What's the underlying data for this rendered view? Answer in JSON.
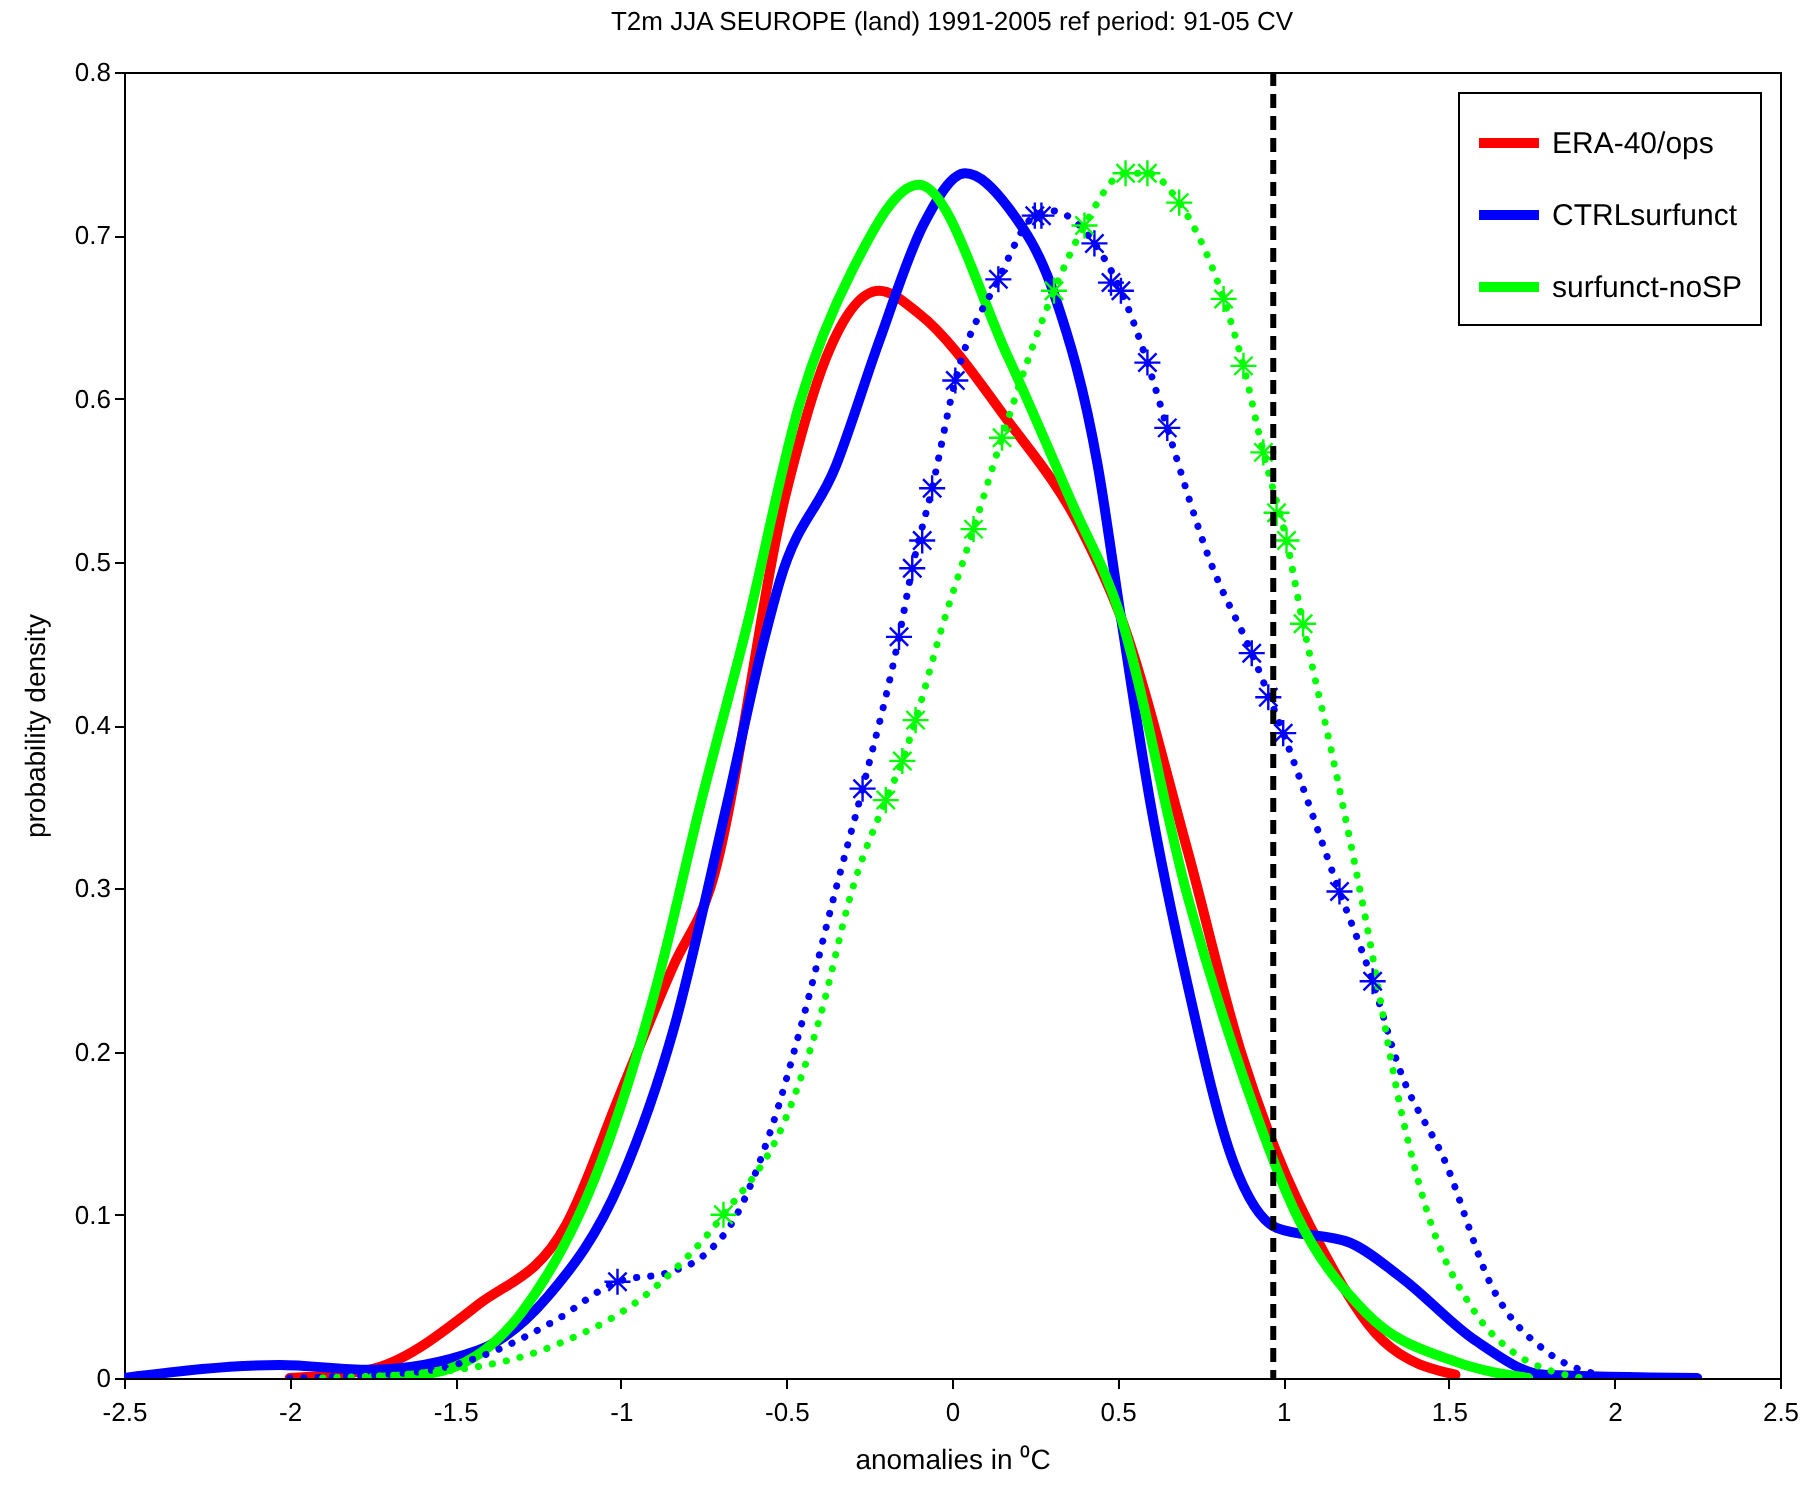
{
  "chart_data": {
    "type": "line",
    "title": "T2m   JJA   SEUROPE (land)  1991-2005  ref period: 91-05  CV",
    "xlabel": "anomalies in ⁰C",
    "ylabel": "probability density",
    "xlim": [
      -2.5,
      2.5
    ],
    "xticks": [
      -2.5,
      -2,
      -1.5,
      -1,
      -0.5,
      0,
      0.5,
      1,
      1.5,
      2,
      2.5
    ],
    "ylim": [
      0,
      0.8
    ],
    "yticks": [
      0,
      0.1,
      0.2,
      0.3,
      0.4,
      0.5,
      0.6,
      0.7,
      0.8
    ],
    "legend": "top right",
    "ref_lines": [
      {
        "axis": "x",
        "value": 0.97,
        "color": "#000000",
        "line_style": "dashed"
      }
    ],
    "series": [
      {
        "name": "ERA-40/ops",
        "color": "#ff0000",
        "x": [
          -2.0,
          -1.76,
          -1.43,
          -1.165,
          -1.0,
          -0.84,
          -0.73,
          -0.5,
          -0.38,
          -0.22,
          -0.1,
          0.17,
          0.39,
          0.51,
          0.71,
          0.875,
          0.98,
          1.12,
          1.3,
          1.52
        ],
        "values": [
          0,
          0.005,
          0.045,
          0.094,
          0.175,
          0.253,
          0.3,
          0.543,
          0.625,
          0.666,
          0.652,
          0.586,
          0.52,
          0.466,
          0.324,
          0.198,
          0.138,
          0.078,
          0.023,
          0.002
        ]
      },
      {
        "name": "CTRLsurfunct",
        "color": "#0000ff",
        "x": [
          -2.5,
          -2.03,
          -1.76,
          -1.43,
          -1.22,
          -1.0,
          -0.84,
          -0.68,
          -0.57,
          -0.52,
          -0.35,
          -0.22,
          -0.085,
          0.04,
          0.17,
          0.31,
          0.44,
          0.51,
          0.6,
          0.71,
          0.85,
          0.98,
          1.2,
          1.36,
          1.58,
          1.79,
          2.25
        ],
        "values": [
          0,
          0.008,
          0.005,
          0.017,
          0.05,
          0.121,
          0.214,
          0.351,
          0.45,
          0.488,
          0.559,
          0.635,
          0.707,
          0.738,
          0.717,
          0.663,
          0.559,
          0.466,
          0.351,
          0.242,
          0.132,
          0.092,
          0.083,
          0.061,
          0.023,
          0.002,
          0
        ]
      },
      {
        "name": "surfunct-noSP",
        "color": "#00ff00",
        "x": [
          -1.75,
          -1.57,
          -1.3,
          -1.06,
          -0.89,
          -0.76,
          -0.62,
          -0.46,
          -0.3,
          -0.1,
          0.17,
          0.36,
          0.51,
          0.71,
          0.875,
          1.04,
          1.25,
          1.52,
          1.74
        ],
        "values": [
          0,
          0.003,
          0.04,
          0.132,
          0.242,
          0.351,
          0.46,
          0.597,
          0.679,
          0.731,
          0.625,
          0.537,
          0.466,
          0.296,
          0.187,
          0.1,
          0.04,
          0.01,
          0
        ]
      },
      {
        "color": "#0000ff",
        "line_style": "dotted",
        "x": [
          -2.0,
          -1.6,
          -1.4,
          -1.2,
          -1.01,
          -0.85,
          -0.75,
          -0.65,
          -0.55,
          -0.45,
          -0.35,
          -0.27,
          -0.16,
          -0.12,
          -0.06,
          0.01,
          0.14,
          0.25,
          0.3,
          0.43,
          0.51,
          0.59,
          0.65,
          0.78,
          0.905,
          1.0,
          1.17,
          1.27,
          1.35,
          1.49,
          1.63,
          1.79,
          2.0
        ],
        "values": [
          0,
          0.004,
          0.015,
          0.035,
          0.059,
          0.065,
          0.075,
          0.1,
          0.15,
          0.22,
          0.3,
          0.361,
          0.454,
          0.496,
          0.545,
          0.611,
          0.673,
          0.712,
          0.715,
          0.695,
          0.666,
          0.622,
          0.582,
          0.5,
          0.444,
          0.395,
          0.298,
          0.243,
          0.19,
          0.132,
          0.056,
          0.017,
          0
        ]
      },
      {
        "color": "#00ff00",
        "line_style": "dotted",
        "x": [
          -1.9,
          -1.5,
          -1.2,
          -0.9,
          -0.69,
          -0.5,
          -0.4,
          -0.3,
          -0.2,
          -0.15,
          -0.11,
          -0.03,
          0.065,
          0.151,
          0.308,
          0.4,
          0.524,
          0.59,
          0.686,
          0.82,
          0.88,
          0.94,
          1.01,
          1.06,
          1.15,
          1.25,
          1.36,
          1.43,
          1.58,
          1.7,
          1.8,
          1.9
        ],
        "values": [
          0,
          0.005,
          0.02,
          0.055,
          0.1,
          0.16,
          0.22,
          0.3,
          0.354,
          0.378,
          0.403,
          0.46,
          0.52,
          0.576,
          0.666,
          0.706,
          0.738,
          0.738,
          0.72,
          0.661,
          0.62,
          0.567,
          0.513,
          0.462,
          0.38,
          0.28,
          0.16,
          0.105,
          0.04,
          0.015,
          0.005,
          0
        ]
      },
      {
        "type": "scatter",
        "marker": "cross",
        "color": "#0000ff",
        "x": [
          -1.01,
          -0.27,
          -0.16,
          -0.12,
          -0.09,
          -0.06,
          0.01,
          0.14,
          0.25,
          0.27,
          0.43,
          0.48,
          0.51,
          0.59,
          0.65,
          0.905,
          0.955,
          1.0,
          1.17,
          1.27
        ],
        "values": [
          0.059,
          0.361,
          0.454,
          0.496,
          0.513,
          0.545,
          0.611,
          0.673,
          0.712,
          0.712,
          0.695,
          0.671,
          0.666,
          0.622,
          0.582,
          0.444,
          0.417,
          0.395,
          0.298,
          0.243
        ]
      },
      {
        "type": "scatter",
        "marker": "cross",
        "color": "#00ff00",
        "x": [
          -0.69,
          -0.2,
          -0.15,
          -0.11,
          0.065,
          0.151,
          0.308,
          0.4,
          0.524,
          0.59,
          0.686,
          0.82,
          0.88,
          0.94,
          0.98,
          1.01,
          1.06
        ],
        "values": [
          0.1,
          0.354,
          0.378,
          0.403,
          0.52,
          0.576,
          0.666,
          0.706,
          0.738,
          0.738,
          0.72,
          0.661,
          0.62,
          0.567,
          0.53,
          0.513,
          0.462
        ]
      }
    ]
  }
}
